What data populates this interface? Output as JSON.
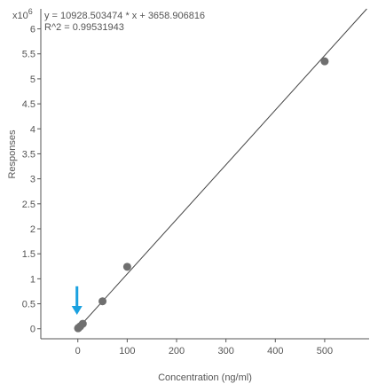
{
  "chart_data": {
    "type": "scatter",
    "xlabel": "Concentration (ng/ml)",
    "ylabel": "Responses",
    "y_multiplier_base": "x10",
    "y_multiplier_exponent": "6",
    "equation": "y = 10928.503474 * x  + 3658.906816",
    "r_squared": "R^2 = 0.99531943",
    "xlim": [
      -75,
      590
    ],
    "ylim": [
      -0.2,
      6.4
    ],
    "x_ticks": [
      0,
      100,
      200,
      300,
      400,
      500
    ],
    "x_tick_labels": [
      "0",
      "100",
      "200",
      "300",
      "400",
      "500"
    ],
    "y_ticks": [
      0,
      0.5,
      1,
      1.5,
      2,
      2.5,
      3,
      3.5,
      4,
      4.5,
      5,
      5.5,
      6
    ],
    "y_tick_labels": [
      "0",
      "0.5",
      "1",
      "1.5",
      "2",
      "2.5",
      "3",
      "3.5",
      "4",
      "4.5",
      "5",
      "5.5",
      "6"
    ],
    "series": [
      {
        "points": [
          {
            "x": 0.5,
            "y": 0.01
          },
          {
            "x": 1,
            "y": 0.015
          },
          {
            "x": 2,
            "y": 0.025
          },
          {
            "x": 5,
            "y": 0.05
          },
          {
            "x": 10,
            "y": 0.1
          },
          {
            "x": 50,
            "y": 0.55
          },
          {
            "x": 100,
            "y": 1.24
          },
          {
            "x": 500,
            "y": 5.35
          }
        ]
      }
    ],
    "fit_line": {
      "slope": 10928.503474,
      "intercept": 3658.906816,
      "x_range": [
        -2,
        590
      ]
    },
    "marker_color": "#6f6f6f",
    "line_color": "#444444",
    "axis_color": "#555555",
    "arrow": {
      "x": 0,
      "y_top": 0.85,
      "y_bottom": 0.28,
      "color": "#1aa1e0"
    }
  }
}
